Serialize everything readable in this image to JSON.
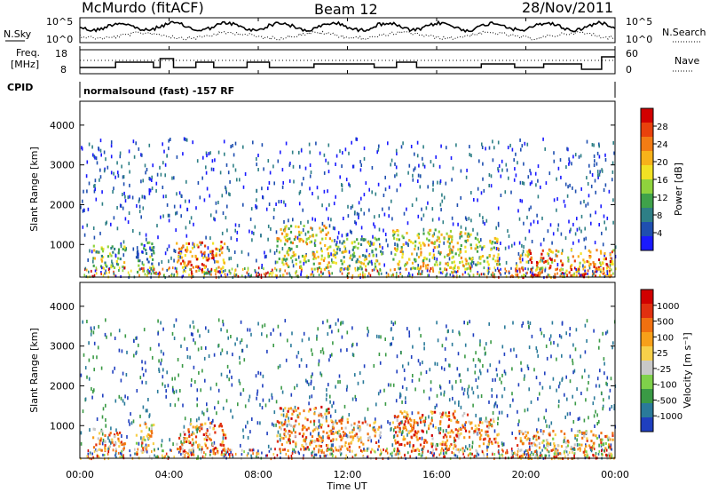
{
  "header": {
    "title": "McMurdo (fitACF)",
    "beam": "Beam 12",
    "date": "28/Nov/2011"
  },
  "noise_panel": {
    "left_label": "N.Sky",
    "right_label": "N.Search",
    "left_ticks": [
      "10^5",
      "10^0"
    ],
    "right_ticks": [
      "10^5",
      "10^0"
    ]
  },
  "freq_panel": {
    "left_label_1": "Freq.",
    "left_label_2": "[MHz]",
    "right_label": "Nave",
    "left_ticks": [
      "18",
      "8"
    ],
    "right_ticks": [
      "60",
      "0"
    ]
  },
  "cpid": {
    "label": "CPID",
    "text": "normalsound (fast) -157 RF"
  },
  "x_axis": {
    "ticks": [
      "00:00",
      "04:00",
      "08:00",
      "12:00",
      "16:00",
      "20:00",
      "00:00"
    ],
    "label": "Time UT"
  },
  "chart_data": [
    {
      "type": "heatmap",
      "panel": "power",
      "ylabel": "Slant Range [km]",
      "y_ticks": [
        1000,
        2000,
        3000,
        4000
      ],
      "ylim": [
        180,
        4600
      ],
      "xlim": [
        0,
        24
      ],
      "colorbar_label": "Power [dB]",
      "colorbar_ticks": [
        "4",
        "8",
        "12",
        "16",
        "20",
        "24",
        "28"
      ],
      "colors": [
        "#1a1aff",
        "#1f4fb0",
        "#2e7f86",
        "#3fa24a",
        "#8fd33d",
        "#f2e224",
        "#f7b21a",
        "#f27c14",
        "#e8410c",
        "#d10000"
      ],
      "regions": [
        {
          "t": [
            0.5,
            2.0
          ],
          "r": [
            400,
            1000
          ],
          "intensity": 0.45
        },
        {
          "t": [
            2.5,
            3.3
          ],
          "r": [
            300,
            1100
          ],
          "intensity": 0.3
        },
        {
          "t": [
            4.3,
            6.5
          ],
          "r": [
            300,
            1100
          ],
          "intensity": 0.75
        },
        {
          "t": [
            8.8,
            11.2
          ],
          "r": [
            400,
            1500
          ],
          "intensity": 0.55
        },
        {
          "t": [
            11.2,
            13.5
          ],
          "r": [
            400,
            1200
          ],
          "intensity": 0.45
        },
        {
          "t": [
            14.0,
            17.5
          ],
          "r": [
            400,
            1400
          ],
          "intensity": 0.55
        },
        {
          "t": [
            17.5,
            18.8
          ],
          "r": [
            500,
            1200
          ],
          "intensity": 0.5
        },
        {
          "t": [
            19.5,
            23.9
          ],
          "r": [
            200,
            900
          ],
          "intensity": 0.7
        }
      ]
    },
    {
      "type": "heatmap",
      "panel": "velocity",
      "ylabel": "Slant Range [km]",
      "y_ticks": [
        1000,
        2000,
        3000,
        4000
      ],
      "ylim": [
        180,
        4600
      ],
      "xlim": [
        0,
        24
      ],
      "colorbar_label": "Velocity [m s⁻¹]",
      "colorbar_ticks": [
        "1000",
        "500",
        "100",
        "25",
        "-25",
        "-100",
        "-500",
        "-1000"
      ],
      "colors": [
        "#1f3fbf",
        "#2a7a9a",
        "#3a9a45",
        "#7fd14a",
        "#c8c8c8",
        "#f7d04a",
        "#f7a01a",
        "#f07010",
        "#e03010",
        "#d00000"
      ],
      "regions": [
        {
          "t": [
            0.5,
            2.0
          ],
          "r": [
            400,
            1000
          ],
          "intensity": 0.65
        },
        {
          "t": [
            2.5,
            3.3
          ],
          "r": [
            300,
            1100
          ],
          "intensity": 0.6
        },
        {
          "t": [
            4.3,
            6.5
          ],
          "r": [
            300,
            1100
          ],
          "intensity": 0.7
        },
        {
          "t": [
            8.8,
            11.2
          ],
          "r": [
            400,
            1500
          ],
          "intensity": 0.7
        },
        {
          "t": [
            11.2,
            13.5
          ],
          "r": [
            400,
            1200
          ],
          "intensity": 0.65
        },
        {
          "t": [
            14.0,
            17.5
          ],
          "r": [
            400,
            1400
          ],
          "intensity": 0.72
        },
        {
          "t": [
            17.5,
            18.8
          ],
          "r": [
            500,
            1200
          ],
          "intensity": 0.65
        },
        {
          "t": [
            19.5,
            23.9
          ],
          "r": [
            200,
            900
          ],
          "intensity": 0.6
        }
      ]
    }
  ]
}
